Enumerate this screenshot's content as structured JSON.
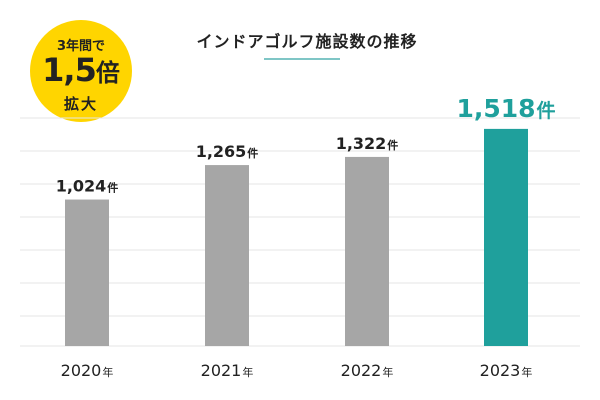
{
  "title": "インドアゴルフ施設数の推移",
  "badge": {
    "line1": "3年間で",
    "value": "1,5",
    "value_unit": "倍",
    "line3": "拡大"
  },
  "colors": {
    "bar": "#a6a6a6",
    "highlight": "#1fa09c",
    "grid": "#e6e6e6",
    "badge": "#ffd500",
    "text": "#222222"
  },
  "chart_data": {
    "type": "bar",
    "title": "インドアゴルフ施設数の推移",
    "categories": [
      "2020",
      "2021",
      "2022",
      "2023"
    ],
    "category_unit": "年",
    "values": [
      1024,
      1265,
      1322,
      1518
    ],
    "value_labels": [
      "1,024",
      "1,265",
      "1,322",
      "1,518"
    ],
    "value_unit": "件",
    "highlight_index": 3,
    "ylim": [
      0,
      1720
    ],
    "grid": true,
    "xlabel": "",
    "ylabel": ""
  }
}
